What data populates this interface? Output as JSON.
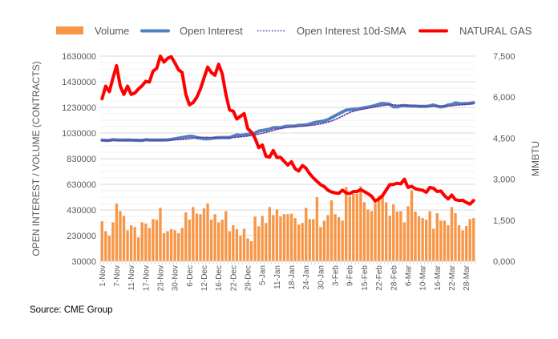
{
  "source": "Source: CME Group",
  "chart_data": {
    "type": "bar+line",
    "title": "",
    "legend_position": "top",
    "legend": [
      "Volume",
      "Open Interest",
      "Open Interest 10d-SMA",
      "NATURAL GAS"
    ],
    "ylabel": "OPEN INTEREST / VOLUME (CONTRACTS)",
    "y2label": "MMBTU",
    "ylim": [
      30000,
      1630000
    ],
    "y_ticks": [
      "30000",
      "230000",
      "430000",
      "630000",
      "830000",
      "1030000",
      "1230000",
      "1430000",
      "1630000"
    ],
    "y2lim": [
      0,
      7.5
    ],
    "y2_ticks": [
      "0,000",
      "1,500",
      "3,000",
      "4,500",
      "6,000",
      "7,500"
    ],
    "x_tick_every": 4,
    "x_tick_labels": [
      "1-Nov",
      "7-Nov",
      "11-Nov",
      "17-Nov",
      "23-Nov",
      "30-Nov",
      "6-Dec",
      "12-Dec",
      "16-Dec",
      "22-Dec",
      "29-Dec",
      "5-Jan",
      "11-Jan",
      "18-Jan",
      "24-Jan",
      "30-Jan",
      "3-Feb",
      "9-Feb",
      "15-Feb",
      "22-Feb",
      "28-Feb",
      "6-Mar",
      "10-Mar",
      "16-Mar",
      "22-Mar",
      "28-Mar"
    ],
    "grid": true,
    "colors": {
      "volume": "#F79646",
      "open_interest": "#4F81BD",
      "sma": "#7030A0",
      "gas": "#FF0000"
    },
    "series": [
      {
        "name": "Volume",
        "axis": "left",
        "type": "bar",
        "values": [
          342000,
          265000,
          228000,
          334000,
          480000,
          421000,
          384000,
          272000,
          311000,
          297000,
          217000,
          334000,
          324000,
          290000,
          359000,
          353000,
          447000,
          249000,
          265000,
          280000,
          272000,
          249000,
          290000,
          411000,
          355000,
          453000,
          401000,
          397000,
          442000,
          480000,
          355000,
          397000,
          334000,
          355000,
          421000,
          265000,
          311000,
          280000,
          228000,
          284000,
          209000,
          186000,
          378000,
          303000,
          384000,
          328000,
          453000,
          390000,
          434000,
          380000,
          397000,
          397000,
          401000,
          367000,
          317000,
          328000,
          447000,
          359000,
          359000,
          530000,
          297000,
          347000,
          390000,
          505000,
          397000,
          374000,
          347000,
          609000,
          536000,
          557000,
          557000,
          615000,
          490000,
          434000,
          421000,
          484000,
          540000,
          551000,
          490000,
          386000,
          474000,
          417000,
          421000,
          334000,
          459000,
          584000,
          417000,
          380000,
          367000,
          355000,
          421000,
          284000,
          405000,
          347000,
          347000,
          311000,
          453000,
          405000,
          311000,
          272000,
          305000,
          359000,
          367000
        ]
      },
      {
        "name": "Open Interest",
        "axis": "left",
        "type": "line",
        "values": [
          975000,
          972000,
          973000,
          978000,
          976000,
          975000,
          975000,
          976000,
          975000,
          974000,
          973000,
          972000,
          978000,
          976000,
          975000,
          975000,
          975000,
          976000,
          977000,
          980000,
          985000,
          990000,
          995000,
          1000000,
          1005000,
          1003000,
          995000,
          990000,
          985000,
          985000,
          988000,
          992000,
          995000,
          995000,
          995000,
          995000,
          1005000,
          1015000,
          1012000,
          1015000,
          1020000,
          1025000,
          1030000,
          1045000,
          1050000,
          1055000,
          1060000,
          1071000,
          1073000,
          1072000,
          1080000,
          1084000,
          1084000,
          1085000,
          1090000,
          1092000,
          1093000,
          1100000,
          1110000,
          1115000,
          1120000,
          1125000,
          1134000,
          1150000,
          1165000,
          1180000,
          1195000,
          1209000,
          1212000,
          1215000,
          1217000,
          1222000,
          1228000,
          1232000,
          1238000,
          1245000,
          1255000,
          1261000,
          1258000,
          1255000,
          1235000,
          1234000,
          1242000,
          1244000,
          1242000,
          1240000,
          1240000,
          1238000,
          1238000,
          1238000,
          1242000,
          1249000,
          1240000,
          1234000,
          1238000,
          1249000,
          1252000,
          1265000,
          1260000,
          1259000,
          1260000,
          1262000,
          1267000
        ]
      },
      {
        "name": "Open Interest 10d-SMA",
        "axis": "left",
        "type": "line",
        "values": [
          972000,
          972000,
          972000,
          973000,
          973000,
          974000,
          974000,
          974000,
          975000,
          975000,
          975000,
          974000,
          974000,
          975000,
          975000,
          975000,
          975000,
          975000,
          975000,
          976000,
          977000,
          978000,
          980000,
          982000,
          985000,
          990000,
          993000,
          996000,
          997000,
          997000,
          995000,
          993000,
          992000,
          992000,
          992000,
          993000,
          995000,
          997000,
          1000000,
          1003000,
          1006000,
          1010000,
          1015000,
          1022000,
          1028000,
          1035000,
          1042000,
          1050000,
          1058000,
          1065000,
          1070000,
          1074000,
          1077000,
          1080000,
          1082000,
          1084000,
          1086000,
          1089000,
          1092000,
          1096000,
          1101000,
          1108000,
          1115000,
          1124000,
          1135000,
          1148000,
          1162000,
          1176000,
          1190000,
          1200000,
          1207000,
          1213000,
          1218000,
          1223000,
          1228000,
          1233000,
          1238000,
          1244000,
          1248000,
          1250000,
          1250000,
          1248000,
          1247000,
          1246000,
          1245000,
          1243000,
          1242000,
          1241000,
          1240000,
          1240000,
          1240000,
          1240000,
          1240000,
          1240000,
          1240000,
          1241000,
          1243000,
          1246000,
          1249000,
          1252000,
          1254000,
          1256000,
          1258000
        ]
      },
      {
        "name": "NATURAL GAS",
        "axis": "right",
        "type": "line",
        "values": [
          5.94,
          6.4,
          6.2,
          6.7,
          7.15,
          6.4,
          6.1,
          6.4,
          6.1,
          6.15,
          6.3,
          6.42,
          6.58,
          6.55,
          6.95,
          7.05,
          7.5,
          7.28,
          7.42,
          7.48,
          7.25,
          7.0,
          6.9,
          6.1,
          5.72,
          5.8,
          5.99,
          6.3,
          6.7,
          7.1,
          6.9,
          6.8,
          7.2,
          6.85,
          6.1,
          5.53,
          5.49,
          5.2,
          5.3,
          5.4,
          4.85,
          4.72,
          4.5,
          4.15,
          4.25,
          3.84,
          3.81,
          4.05,
          3.79,
          3.8,
          3.65,
          3.52,
          3.64,
          3.38,
          3.3,
          3.5,
          3.4,
          3.2,
          3.05,
          2.92,
          2.8,
          2.73,
          2.6,
          2.53,
          2.5,
          2.48,
          2.6,
          2.5,
          2.47,
          2.55,
          2.55,
          2.62,
          2.55,
          2.47,
          2.38,
          2.2,
          2.28,
          2.4,
          2.6,
          2.8,
          2.81,
          2.85,
          2.83,
          3.0,
          2.7,
          2.74,
          2.65,
          2.62,
          2.6,
          2.52,
          2.7,
          2.67,
          2.55,
          2.57,
          2.4,
          2.28,
          2.42,
          2.25,
          2.22,
          2.23,
          2.15,
          2.09,
          2.22
        ]
      }
    ]
  }
}
